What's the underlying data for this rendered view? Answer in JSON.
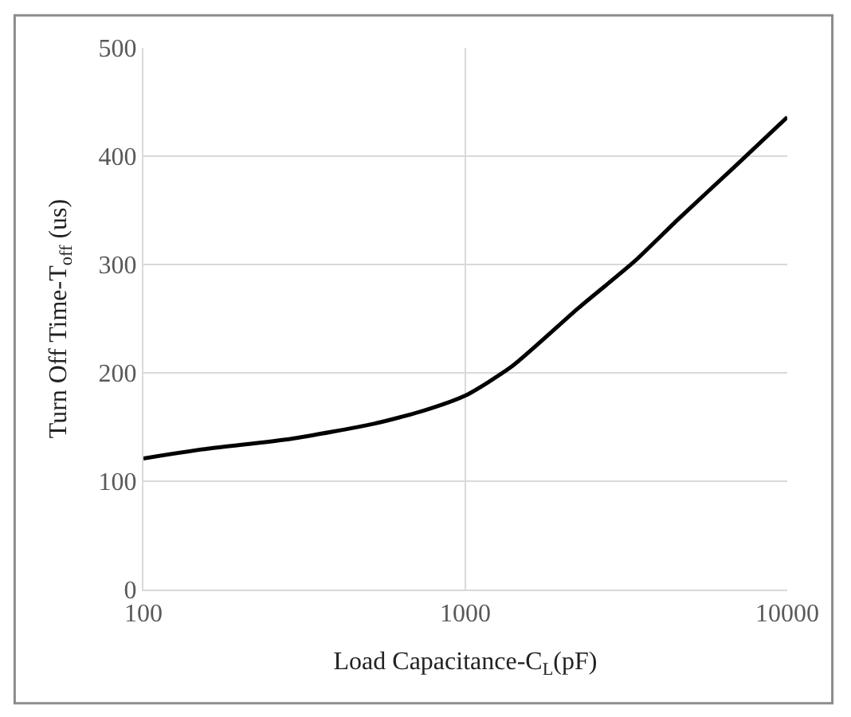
{
  "chart_data": {
    "type": "line",
    "xlabel": "Load Capacitance-C$_{L}$(pF)",
    "ylabel": "Turn Off Time-T$_{off}$ (us)",
    "log": "x",
    "xlim": [
      100,
      10000
    ],
    "xticks": [
      100,
      1000,
      10000
    ],
    "ylim": [
      0,
      500
    ],
    "yticks": [
      0,
      100,
      200,
      300,
      400,
      500
    ],
    "grid": true,
    "marker": "none",
    "line_style": "solid",
    "series": [
      {
        "color": "#000000",
        "x": [
          100,
          158,
          286,
          520,
          740,
          1000,
          1396,
          2249,
          3357,
          4592,
          6850,
          10000
        ],
        "values": [
          121,
          130,
          139,
          153,
          165,
          179,
          206,
          260,
          303,
          342,
          390,
          436
        ]
      }
    ]
  }
}
